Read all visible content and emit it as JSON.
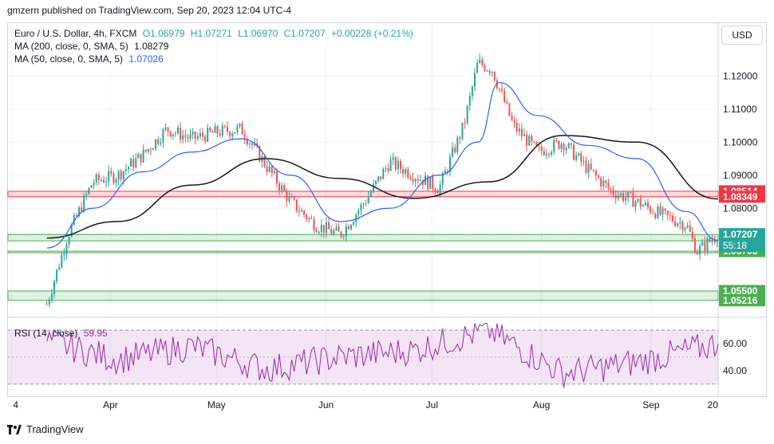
{
  "header": {
    "published": "gmzern published on TradingView.com, Sep 20, 2023 12:04 UTC-4"
  },
  "legend": {
    "symbol": "Euro / U.S. Dollar, 4h, FXCM",
    "o": "O1.06979",
    "h": "H1.07271",
    "l": "L1.06970",
    "c": "C1.07207",
    "change": "+0.00228 (+0.21%)",
    "ma200_label": "MA (200, close, 0, SMA, 5)",
    "ma200_value": "1.08279",
    "ma50_label": "MA (50, close, 0, SMA, 5)",
    "ma50_value": "1.07026",
    "rsi_label": "RSI (14, close)",
    "rsi_value": "59.95"
  },
  "currency_button": "USD",
  "footer": {
    "brand": "TradingView"
  },
  "colors": {
    "up": "#26a69a",
    "down": "#ef5350",
    "ma50": "#2962ff",
    "ma200": "#131722",
    "rsi": "#9c27b0",
    "resistance": "#f23645",
    "support": "#4caf50",
    "price_tag": "#26a69a"
  },
  "chart_data": {
    "type": "line",
    "title": "Euro / U.S. Dollar, 4h, FXCM",
    "price_axis": {
      "ticks": [
        "1.12000",
        "1.11000",
        "1.10000",
        "1.09000",
        "1.08000"
      ],
      "ylim": [
        1.0485,
        1.1285
      ]
    },
    "time_axis": {
      "ticks": [
        "4",
        "Apr",
        "May",
        "Jun",
        "Jul",
        "Aug",
        "Sep",
        "20"
      ]
    },
    "series": [
      {
        "name": "Euro / U.S. Dollar",
        "x": [
          "Mar 14",
          "Mar 20",
          "Mar 27",
          "Apr 3",
          "Apr 10",
          "Apr 17",
          "Apr 24",
          "May 1",
          "May 8",
          "May 15",
          "May 22",
          "May 29",
          "Jun 5",
          "Jun 12",
          "Jun 19",
          "Jun 26",
          "Jul 3",
          "Jul 10",
          "Jul 14",
          "Jul 18",
          "Jul 24",
          "Jul 31",
          "Aug 7",
          "Aug 14",
          "Aug 21",
          "Aug 28",
          "Sep 4",
          "Sep 11",
          "Sep 14",
          "Sep 20"
        ],
        "values": [
          1.051,
          1.072,
          1.088,
          1.09,
          1.096,
          1.104,
          1.101,
          1.103,
          1.104,
          1.093,
          1.082,
          1.075,
          1.072,
          1.082,
          1.094,
          1.09,
          1.086,
          1.105,
          1.124,
          1.122,
          1.105,
          1.097,
          1.1,
          1.092,
          1.085,
          1.082,
          1.078,
          1.075,
          1.067,
          1.0721
        ]
      },
      {
        "name": "MA (50, close, 0, SMA, 5)",
        "x": [
          "Mar 14",
          "Mar 27",
          "Apr 10",
          "Apr 24",
          "May 8",
          "May 22",
          "Jun 5",
          "Jun 19",
          "Jul 3",
          "Jul 14",
          "Jul 20",
          "Jul 31",
          "Aug 14",
          "Aug 28",
          "Sep 11",
          "Sep 20"
        ],
        "values": [
          1.068,
          1.08,
          1.091,
          1.097,
          1.101,
          1.09,
          1.076,
          1.08,
          1.09,
          1.1,
          1.118,
          1.108,
          1.099,
          1.095,
          1.079,
          1.0703
        ]
      },
      {
        "name": "MA (200, close, 0, SMA, 5)",
        "x": [
          "Mar 14",
          "Apr 3",
          "Apr 24",
          "May 15",
          "Jun 5",
          "Jun 26",
          "Jul 17",
          "Aug 7",
          "Aug 28",
          "Sep 20"
        ],
        "values": [
          1.071,
          1.076,
          1.087,
          1.095,
          1.089,
          1.083,
          1.088,
          1.102,
          1.1,
          1.0828
        ]
      }
    ],
    "levels": [
      {
        "kind": "resistance",
        "from": 1.08349,
        "to": 1.08514,
        "labels": [
          "1.08514",
          "1.08349"
        ]
      },
      {
        "kind": "support",
        "from": 1.07015,
        "to": 1.07207,
        "labels": [
          "1.07207",
          "1.07015"
        ]
      },
      {
        "kind": "support",
        "from": 1.06703,
        "to": 1.06703,
        "labels": [
          "1.06703"
        ]
      },
      {
        "kind": "support",
        "from": 1.05216,
        "to": 1.055,
        "labels": [
          "1.05500",
          "1.05216"
        ]
      }
    ],
    "current_price": {
      "value": 1.07207,
      "label": "1.07207",
      "countdown": "55:18"
    },
    "rsi": {
      "name": "RSI (14, close)",
      "ylim": [
        24,
        76
      ],
      "ticks": [
        "60.00",
        "40.00"
      ],
      "band": [
        30,
        70
      ],
      "x": [
        "Mar 14",
        "Apr 3",
        "Apr 24",
        "May 15",
        "Jun 5",
        "Jun 26",
        "Jul 17",
        "Aug 7",
        "Aug 28",
        "Sep 20"
      ],
      "values": [
        62,
        48,
        58,
        41,
        50,
        55,
        70,
        38,
        46,
        59.95
      ]
    }
  }
}
